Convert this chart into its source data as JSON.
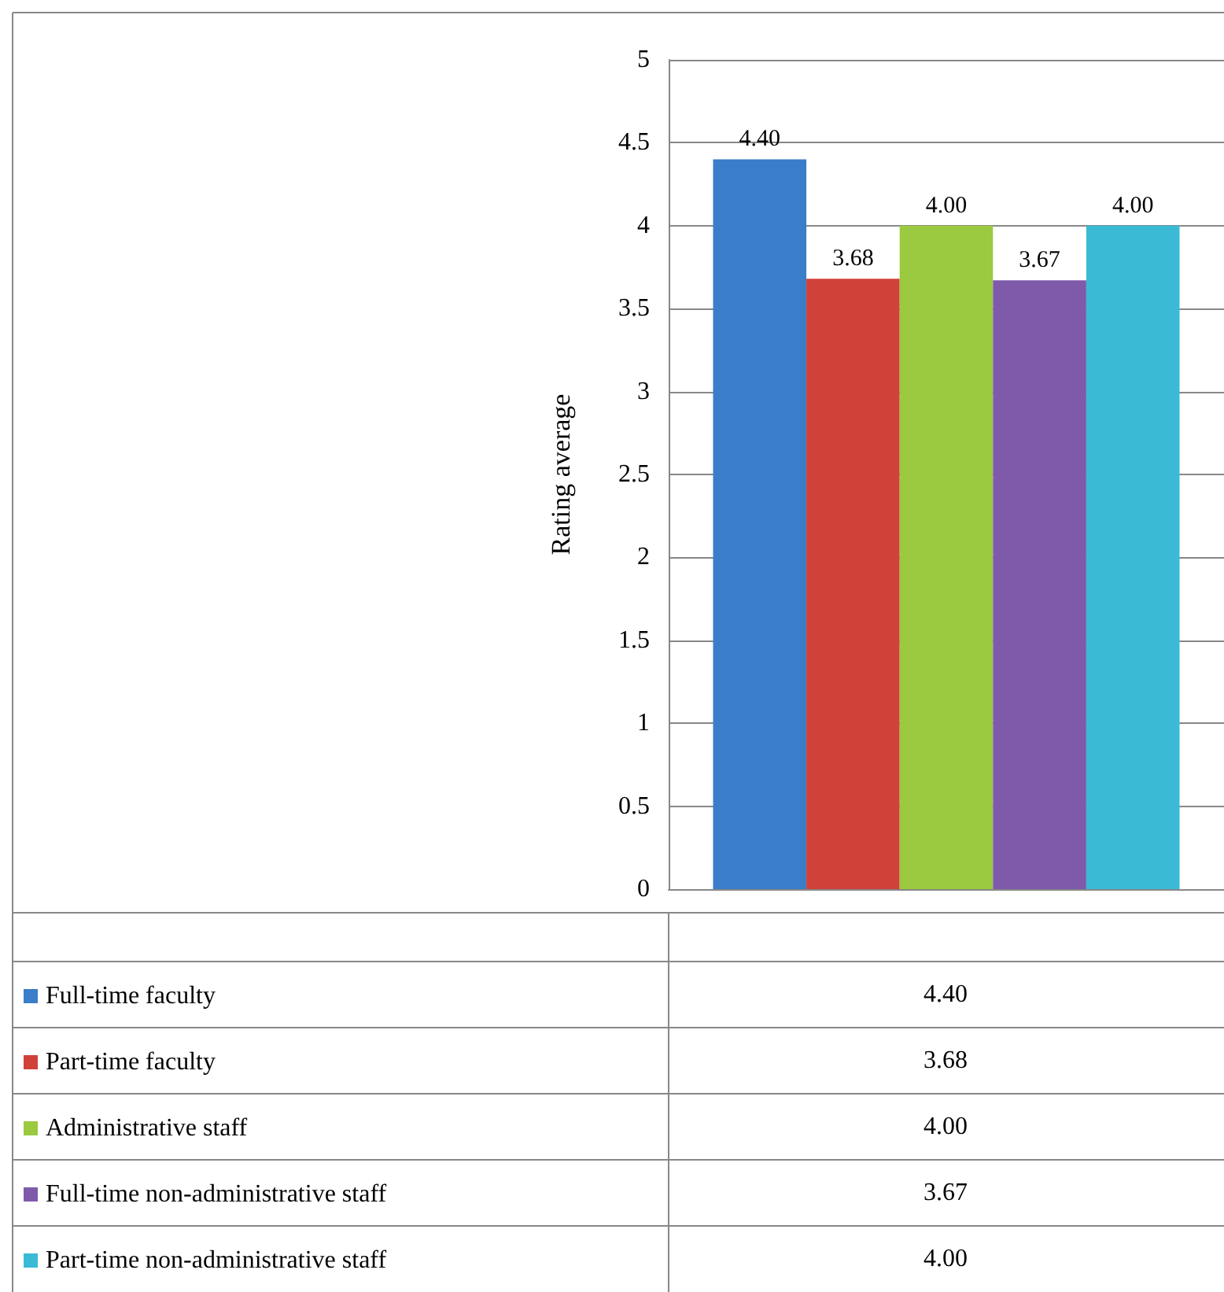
{
  "chart_data": {
    "type": "bar",
    "ylabel": "Rating average",
    "categories": [
      null
    ],
    "series": [
      {
        "name": "Full-time faculty",
        "color": "#3a7dc9",
        "values": [
          4.4
        ],
        "value_labels": [
          "4.40"
        ]
      },
      {
        "name": "Part-time faculty",
        "color": "#d0413a",
        "values": [
          3.68
        ],
        "value_labels": [
          "3.68"
        ]
      },
      {
        "name": "Administrative staff",
        "color": "#9bc93f",
        "values": [
          4.0
        ],
        "value_labels": [
          "4.00"
        ]
      },
      {
        "name": "Full-time non-administrative staff",
        "color": "#7f5aab",
        "values": [
          3.67
        ],
        "value_labels": [
          "3.67"
        ]
      },
      {
        "name": "Part-time non-administrative staff",
        "color": "#3bbad6",
        "values": [
          4.0
        ],
        "value_labels": [
          "4.00"
        ]
      }
    ],
    "ylim": [
      0,
      5
    ],
    "yticks": [
      0,
      0.5,
      1,
      1.5,
      2,
      2.5,
      3,
      3.5,
      4,
      4.5,
      5
    ],
    "grid": "y",
    "legend": "bottom"
  }
}
